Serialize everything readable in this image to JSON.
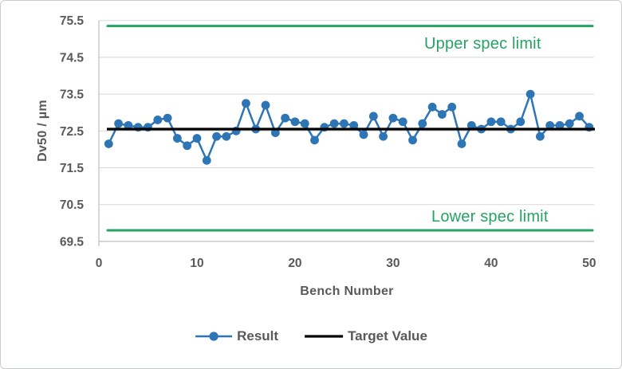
{
  "chart": {
    "y_axis_title": "Dv50 / µm",
    "x_axis_title": "Bench Number",
    "upper_spec_label": "Upper spec limit",
    "lower_spec_label": "Lower spec limit",
    "legend": {
      "result_label": "Result",
      "target_label": "Target Value"
    }
  },
  "colors": {
    "series_blue": "#2E75B6",
    "spec_green": "#26A364",
    "target_black": "#000000",
    "axis_text_gray": "#595959",
    "gridline_gray": "#D9D9D9",
    "axis_line_gray": "#BFBFBF"
  },
  "chart_data": {
    "type": "line",
    "title": "",
    "xlabel": "Bench Number",
    "ylabel": "Dv50 / µm",
    "xlim": [
      0,
      50.5
    ],
    "ylim": [
      69.5,
      75.5
    ],
    "xticks": [
      0,
      10,
      20,
      30,
      40,
      50
    ],
    "yticks": [
      69.5,
      70.5,
      71.5,
      72.5,
      73.5,
      74.5,
      75.5
    ],
    "grid": "horizontal",
    "legend_position": "bottom",
    "series": [
      {
        "name": "Result",
        "type": "line+marker",
        "color": "#2E75B6",
        "x": [
          1,
          2,
          3,
          4,
          5,
          6,
          7,
          8,
          9,
          10,
          11,
          12,
          13,
          14,
          15,
          16,
          17,
          18,
          19,
          20,
          21,
          22,
          23,
          24,
          25,
          26,
          27,
          28,
          29,
          30,
          31,
          32,
          33,
          34,
          35,
          36,
          37,
          38,
          39,
          40,
          41,
          42,
          43,
          44,
          45,
          46,
          47,
          48,
          49,
          50
        ],
        "y": [
          72.15,
          72.7,
          72.65,
          72.6,
          72.6,
          72.8,
          72.85,
          72.3,
          72.1,
          72.3,
          71.7,
          72.35,
          72.35,
          72.5,
          73.25,
          72.55,
          73.2,
          72.45,
          72.85,
          72.75,
          72.7,
          72.25,
          72.6,
          72.7,
          72.7,
          72.65,
          72.4,
          72.9,
          72.35,
          72.85,
          72.75,
          72.25,
          72.7,
          73.15,
          72.95,
          73.15,
          72.15,
          72.65,
          72.55,
          72.75,
          72.75,
          72.55,
          72.75,
          73.5,
          72.35,
          72.65,
          72.65,
          72.7,
          72.9,
          72.6
        ]
      },
      {
        "name": "Target Value",
        "type": "hline",
        "color": "#000000",
        "value": 72.55
      },
      {
        "name": "Upper spec limit",
        "type": "hline",
        "color": "#26A364",
        "value": 75.35
      },
      {
        "name": "Lower spec limit",
        "type": "hline",
        "color": "#26A364",
        "value": 69.8
      }
    ],
    "annotations": [
      {
        "text": "Upper spec limit",
        "color": "#26A364",
        "x": 39,
        "y": 74.9
      },
      {
        "text": "Lower spec limit",
        "color": "#26A364",
        "x": 40,
        "y": 70.1
      }
    ]
  }
}
